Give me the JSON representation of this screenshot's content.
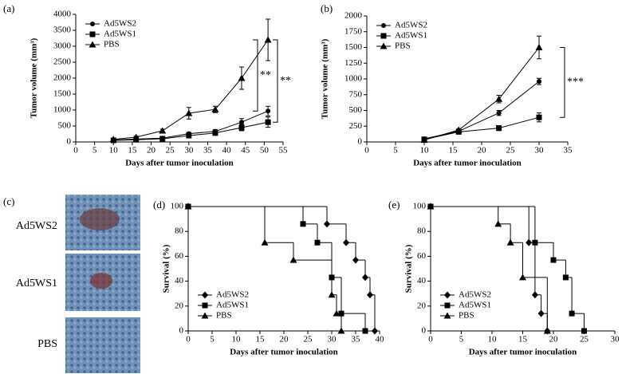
{
  "panel_c": {
    "label": "(c)",
    "rows": [
      "Ad5WS2",
      "Ad5WS1",
      "PBS"
    ]
  },
  "chart_data": [
    {
      "type": "line",
      "panel": "(a)",
      "xlabel": "Days after tumor inoculation",
      "ylabel": "Tumor volume (mm³)",
      "xlim": [
        0,
        55
      ],
      "xticks": [
        0,
        5,
        10,
        15,
        20,
        25,
        30,
        35,
        40,
        45,
        50,
        55
      ],
      "ylim": [
        0,
        4000
      ],
      "yticks": [
        0,
        500,
        1000,
        1500,
        2000,
        2500,
        3000,
        3500,
        4000
      ],
      "legend": "upper left",
      "annotations": [
        "**",
        "**"
      ],
      "series": [
        {
          "name": "Ad5WS2",
          "color": "#000000",
          "marker": "circle",
          "x": [
            10,
            16,
            23,
            30,
            37,
            44,
            51
          ],
          "values": [
            60,
            90,
            120,
            260,
            330,
            620,
            970
          ],
          "errors": [
            10,
            15,
            20,
            40,
            60,
            110,
            150
          ]
        },
        {
          "name": "Ad5WS1",
          "color": "#000000",
          "marker": "square",
          "x": [
            10,
            16,
            23,
            30,
            37,
            44,
            51
          ],
          "values": [
            50,
            70,
            100,
            200,
            280,
            450,
            620
          ],
          "errors": [
            10,
            15,
            20,
            40,
            60,
            100,
            160
          ]
        },
        {
          "name": "PBS",
          "color": "#000000",
          "marker": "triangle",
          "x": [
            10,
            16,
            23,
            30,
            37,
            44,
            51
          ],
          "values": [
            80,
            150,
            350,
            900,
            1020,
            2000,
            3200
          ],
          "errors": [
            20,
            30,
            50,
            180,
            100,
            350,
            650
          ]
        }
      ]
    },
    {
      "type": "line",
      "panel": "(b)",
      "xlabel": "Days after tumor inoculation",
      "ylabel": "Tumor volume (mm³)",
      "xlim": [
        0,
        35
      ],
      "xticks": [
        0,
        5,
        10,
        15,
        20,
        25,
        30,
        35
      ],
      "ylim": [
        0,
        2000
      ],
      "yticks": [
        0,
        250,
        500,
        750,
        1000,
        1250,
        1500,
        1750,
        2000
      ],
      "legend": "upper left",
      "annotations": [
        "***"
      ],
      "series": [
        {
          "name": "Ad5WS2",
          "color": "#000000",
          "marker": "circle",
          "x": [
            10,
            16,
            23,
            30
          ],
          "values": [
            50,
            170,
            460,
            960
          ],
          "errors": [
            15,
            20,
            40,
            50
          ]
        },
        {
          "name": "Ad5WS1",
          "color": "#000000",
          "marker": "square",
          "x": [
            10,
            16,
            23,
            30
          ],
          "values": [
            40,
            160,
            220,
            390
          ],
          "errors": [
            10,
            20,
            40,
            70
          ]
        },
        {
          "name": "PBS",
          "color": "#000000",
          "marker": "triangle",
          "x": [
            10,
            16,
            23,
            30
          ],
          "values": [
            30,
            190,
            680,
            1500
          ],
          "errors": [
            10,
            20,
            60,
            180
          ]
        }
      ]
    },
    {
      "type": "step",
      "panel": "(d)",
      "xlabel": "Days after tumor inoculation",
      "ylabel": "Survival (%)",
      "xlim": [
        0,
        40
      ],
      "xticks": [
        0,
        5,
        10,
        15,
        20,
        25,
        30,
        35,
        40
      ],
      "ylim": [
        0,
        100
      ],
      "yticks": [
        0,
        20,
        40,
        60,
        80,
        100
      ],
      "legend": "lower left",
      "series": [
        {
          "name": "Ad5WS2",
          "color": "#000000",
          "marker": "diamond",
          "x": [
            0,
            29,
            33,
            35,
            37,
            38,
            39
          ],
          "values": [
            100,
            86,
            71,
            57,
            43,
            29,
            0
          ]
        },
        {
          "name": "Ad5WS1",
          "color": "#000000",
          "marker": "square",
          "x": [
            0,
            24,
            27,
            30,
            32,
            37
          ],
          "values": [
            100,
            86,
            71,
            43,
            14,
            0
          ]
        },
        {
          "name": "PBS",
          "color": "#000000",
          "marker": "triangle",
          "x": [
            0,
            16,
            22,
            30,
            31,
            32
          ],
          "values": [
            100,
            71,
            57,
            29,
            14,
            0
          ]
        }
      ]
    },
    {
      "type": "step",
      "panel": "(e)",
      "xlabel": "Days after tumor inoculation",
      "ylabel": "Survival (%)",
      "xlim": [
        0,
        30
      ],
      "xticks": [
        0,
        5,
        10,
        15,
        20,
        25,
        30
      ],
      "ylim": [
        0,
        100
      ],
      "yticks": [
        0,
        20,
        40,
        60,
        80,
        100
      ],
      "legend": "lower left",
      "series": [
        {
          "name": "Ad5WS2",
          "color": "#000000",
          "marker": "diamond",
          "x": [
            0,
            16,
            17,
            18,
            19
          ],
          "values": [
            100,
            71,
            29,
            14,
            0
          ]
        },
        {
          "name": "Ad5WS1",
          "color": "#000000",
          "marker": "square",
          "x": [
            0,
            17,
            20,
            22,
            23,
            25
          ],
          "values": [
            100,
            71,
            57,
            43,
            14,
            0
          ]
        },
        {
          "name": "PBS",
          "color": "#000000",
          "marker": "triangle",
          "x": [
            0,
            11,
            13,
            15,
            19
          ],
          "values": [
            100,
            86,
            71,
            43,
            0
          ]
        }
      ]
    }
  ]
}
